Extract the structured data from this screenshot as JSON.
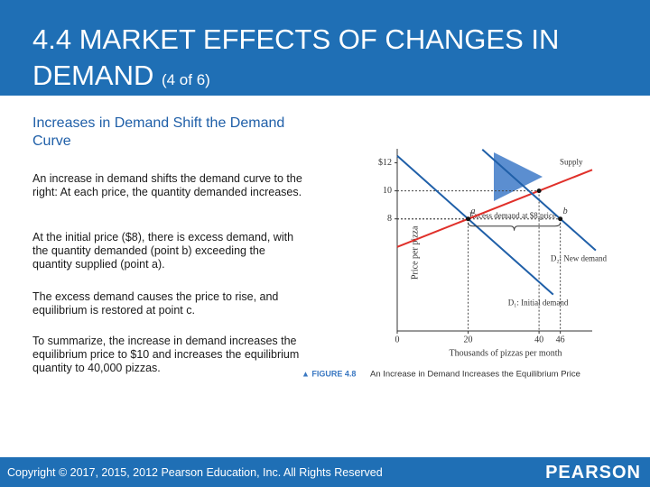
{
  "header": {
    "title": "4.4 MARKET EFFECTS OF CHANGES IN DEMAND",
    "subtitle": "(4 of 6)"
  },
  "body": {
    "heading": "Increases in Demand Shift the Demand Curve",
    "paragraphs": [
      "An increase in demand shifts the demand curve to the right: At each price, the quantity demanded increases.",
      "At the initial price ($8), there is excess demand, with the quantity demanded (point b) exceeding the quantity supplied (point a).",
      "The excess demand causes the price to rise, and equilibrium is restored at point c.",
      "To summarize, the increase in demand increases the equilibrium price to $10 and increases the equilibrium quantity to 40,000 pizzas."
    ]
  },
  "chart_data": {
    "type": "line",
    "y_label": "Price per pizza",
    "x_label": "Thousands of pizzas per month",
    "xlim": [
      0,
      55
    ],
    "xticks": [
      0,
      20,
      40,
      46
    ],
    "ylim": [
      0,
      13
    ],
    "yticks": [
      {
        "value": 12,
        "label": "$12"
      },
      10,
      8
    ],
    "series": [
      {
        "name": "Supply",
        "color": "#e0302a",
        "x": [
          0,
          55
        ],
        "values": [
          6,
          11.5
        ]
      },
      {
        "name": "D₁: Initial demand",
        "color": "#1f5fa8",
        "x": [
          0,
          44
        ],
        "values": [
          12.5,
          2.6
        ]
      },
      {
        "name": "D₂: New demand",
        "color": "#1f5fa8",
        "x": [
          24,
          56
        ],
        "values": [
          12.95,
          5.75
        ]
      }
    ],
    "points": [
      {
        "label": "a",
        "x": 20,
        "y": 8
      },
      {
        "label": "b",
        "x": 46,
        "y": 8
      },
      {
        "label": null,
        "x": 40,
        "y": 10
      }
    ],
    "annotation": "Excess demand at $8 price",
    "figure_label": "▲ FIGURE 4.8",
    "caption": "An Increase in Demand Increases the Equilibrium Price"
  },
  "footer": {
    "copyright": "Copyright © 2017, 2015, 2012 Pearson Education, Inc. All Rights Reserved",
    "brand": "PEARSON"
  }
}
